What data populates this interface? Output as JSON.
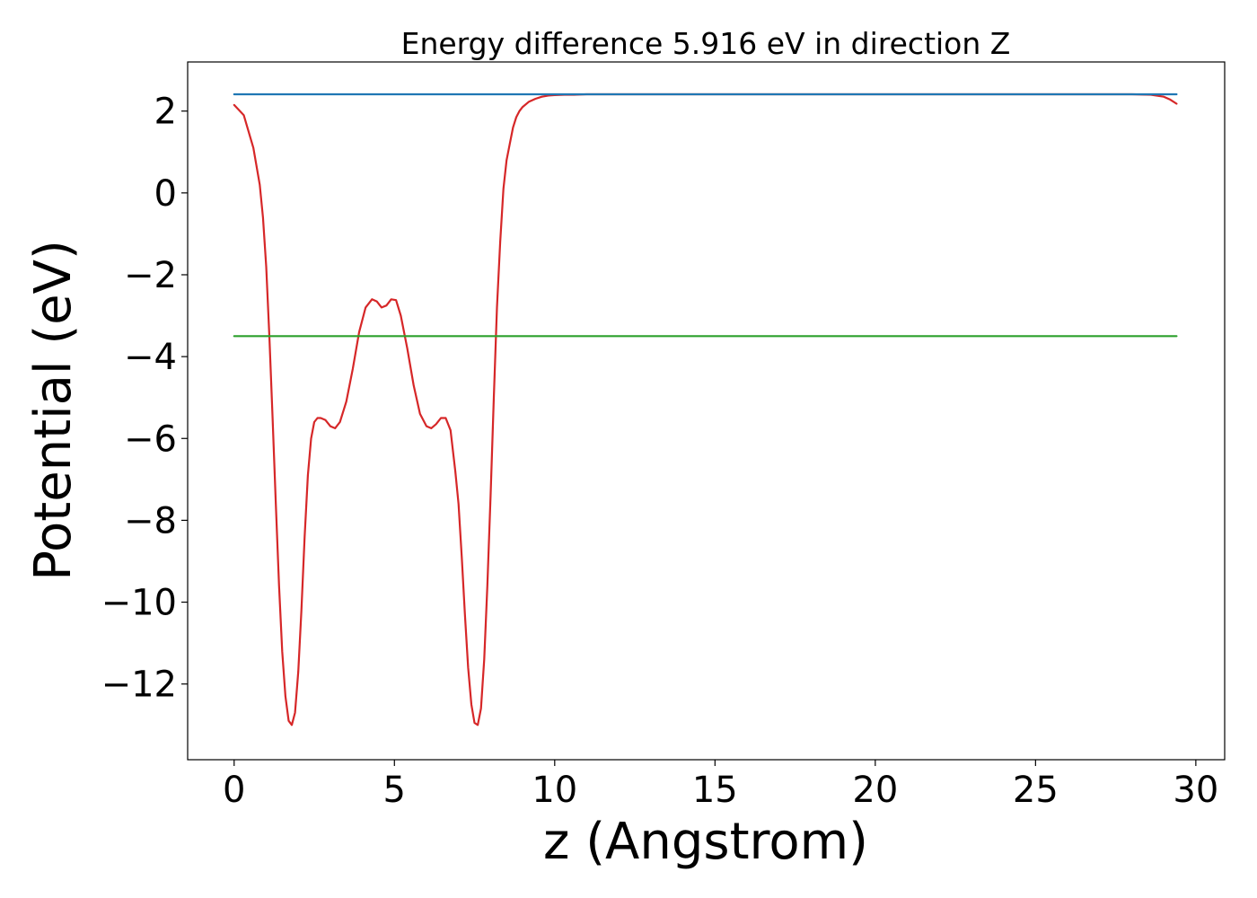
{
  "chart_data": {
    "type": "line",
    "title": "Energy difference 5.916 eV in direction Z",
    "xlabel": "z (Angstrom)",
    "ylabel": "Potential (eV)",
    "xlim": [
      -1.45,
      30.9
    ],
    "ylim": [
      -13.85,
      3.2
    ],
    "xticks": [
      0,
      5,
      10,
      15,
      20,
      25,
      30
    ],
    "xtick_labels": [
      "0",
      "5",
      "10",
      "15",
      "20",
      "25",
      "30"
    ],
    "yticks": [
      2,
      0,
      -2,
      -4,
      -6,
      -8,
      -10,
      -12
    ],
    "ytick_labels": [
      "2",
      "0",
      "−2",
      "−4",
      "−6",
      "−8",
      "−10",
      "−12"
    ],
    "grid": false,
    "series": [
      {
        "color": "#d62728",
        "x": [
          0.0,
          0.3,
          0.6,
          0.8,
          0.9,
          1.0,
          1.1,
          1.2,
          1.3,
          1.4,
          1.5,
          1.6,
          1.7,
          1.8,
          1.9,
          2.0,
          2.1,
          2.2,
          2.3,
          2.4,
          2.5,
          2.6,
          2.7,
          2.85,
          3.0,
          3.15,
          3.3,
          3.5,
          3.7,
          3.9,
          4.1,
          4.3,
          4.45,
          4.6,
          4.75,
          4.9,
          5.05,
          5.2,
          5.4,
          5.6,
          5.8,
          6.0,
          6.15,
          6.3,
          6.45,
          6.6,
          6.75,
          6.9,
          7.0,
          7.1,
          7.2,
          7.3,
          7.4,
          7.5,
          7.6,
          7.7,
          7.8,
          7.9,
          8.0,
          8.1,
          8.2,
          8.3,
          8.4,
          8.5,
          8.6,
          8.7,
          8.8,
          8.9,
          9.0,
          9.2,
          9.4,
          9.6,
          9.8,
          10.0,
          10.3,
          10.6,
          11.0,
          12.0,
          15.0,
          20.0,
          25.0,
          28.0,
          28.6,
          29.0,
          29.2,
          29.4
        ],
        "y": [
          2.15,
          1.9,
          1.1,
          0.2,
          -0.6,
          -1.8,
          -3.5,
          -5.5,
          -7.6,
          -9.6,
          -11.2,
          -12.3,
          -12.9,
          -13.0,
          -12.7,
          -11.7,
          -10.2,
          -8.4,
          -6.9,
          -6.0,
          -5.6,
          -5.5,
          -5.5,
          -5.55,
          -5.7,
          -5.75,
          -5.6,
          -5.1,
          -4.3,
          -3.4,
          -2.8,
          -2.6,
          -2.65,
          -2.8,
          -2.75,
          -2.6,
          -2.62,
          -3.0,
          -3.8,
          -4.7,
          -5.4,
          -5.7,
          -5.75,
          -5.65,
          -5.5,
          -5.5,
          -5.8,
          -6.8,
          -7.6,
          -8.9,
          -10.3,
          -11.6,
          -12.5,
          -12.95,
          -13.0,
          -12.6,
          -11.4,
          -9.6,
          -7.4,
          -5.0,
          -2.8,
          -1.2,
          0.1,
          0.8,
          1.2,
          1.6,
          1.85,
          2.0,
          2.1,
          2.23,
          2.3,
          2.35,
          2.38,
          2.39,
          2.4,
          2.4,
          2.41,
          2.41,
          2.41,
          2.41,
          2.41,
          2.41,
          2.4,
          2.35,
          2.28,
          2.18
        ]
      },
      {
        "color": "#1f77b4",
        "x": [
          0.0,
          29.4
        ],
        "y": [
          2.41,
          2.41
        ]
      },
      {
        "color": "#2ca02c",
        "x": [
          0.0,
          29.4
        ],
        "y": [
          -3.5,
          -3.5
        ]
      }
    ]
  }
}
